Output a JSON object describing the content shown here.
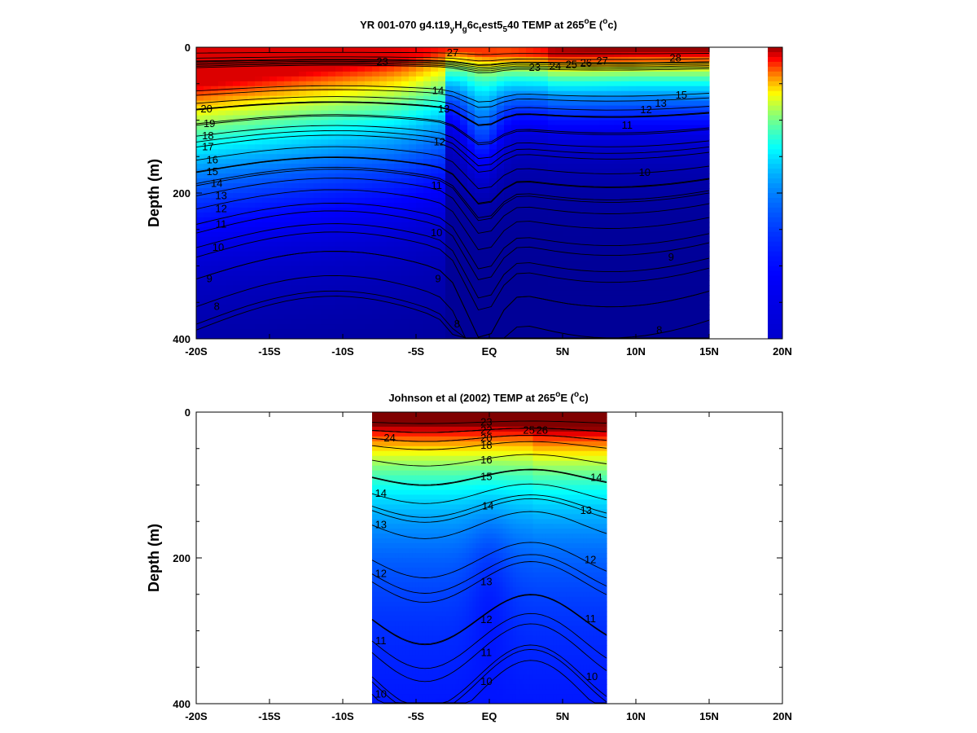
{
  "chart_data": [
    {
      "type": "contour",
      "title_parts": [
        "YR 001-070 g4.t19",
        "y",
        "H",
        "g",
        "6c",
        "t",
        "est5",
        "5",
        "40 TEMP at 265",
        "o",
        "E (",
        "o",
        "c)"
      ],
      "ylabel": "Depth (m)",
      "xlabel": "",
      "xticks": [
        "-20S",
        "-15S",
        "-10S",
        "-5S",
        "EQ",
        "5N",
        "10N",
        "15N",
        "20N"
      ],
      "xlim": [
        -20,
        20
      ],
      "yticks": [
        0,
        200,
        400
      ],
      "ylim": [
        400,
        0
      ],
      "colormap": "jet",
      "color_range": [
        7,
        29
      ],
      "data_extent": [
        -20,
        15
      ],
      "contour_labels": [
        {
          "text": "23",
          "lat": -7.3,
          "depth": 20
        },
        {
          "text": "27",
          "lat": -2.5,
          "depth": 8
        },
        {
          "text": "14",
          "lat": -3.5,
          "depth": 60
        },
        {
          "text": "13",
          "lat": -3.1,
          "depth": 85
        },
        {
          "text": "12",
          "lat": -3.4,
          "depth": 130
        },
        {
          "text": "11",
          "lat": -3.6,
          "depth": 190
        },
        {
          "text": "10",
          "lat": -3.6,
          "depth": 255
        },
        {
          "text": "9",
          "lat": -3.5,
          "depth": 318
        },
        {
          "text": "8",
          "lat": -2.2,
          "depth": 380
        },
        {
          "text": "20",
          "lat": -19.3,
          "depth": 85
        },
        {
          "text": "19",
          "lat": -19.1,
          "depth": 105
        },
        {
          "text": "18",
          "lat": -19.2,
          "depth": 122
        },
        {
          "text": "17",
          "lat": -19.2,
          "depth": 137
        },
        {
          "text": "16",
          "lat": -18.9,
          "depth": 155
        },
        {
          "text": "15",
          "lat": -18.9,
          "depth": 171
        },
        {
          "text": "14",
          "lat": -18.6,
          "depth": 187
        },
        {
          "text": "13",
          "lat": -18.3,
          "depth": 204
        },
        {
          "text": "12",
          "lat": -18.3,
          "depth": 222
        },
        {
          "text": "11",
          "lat": -18.3,
          "depth": 243
        },
        {
          "text": "10",
          "lat": -18.5,
          "depth": 275
        },
        {
          "text": "9",
          "lat": -19.1,
          "depth": 318
        },
        {
          "text": "8",
          "lat": -18.6,
          "depth": 356
        },
        {
          "text": "23",
          "lat": 3.1,
          "depth": 28
        },
        {
          "text": "24",
          "lat": 4.5,
          "depth": 26
        },
        {
          "text": "25",
          "lat": 5.6,
          "depth": 24
        },
        {
          "text": "26",
          "lat": 6.6,
          "depth": 22
        },
        {
          "text": "27",
          "lat": 7.7,
          "depth": 19
        },
        {
          "text": "28",
          "lat": 12.7,
          "depth": 15
        },
        {
          "text": "15",
          "lat": 13.1,
          "depth": 66
        },
        {
          "text": "13",
          "lat": 11.7,
          "depth": 77
        },
        {
          "text": "12",
          "lat": 10.7,
          "depth": 86
        },
        {
          "text": "11",
          "lat": 9.4,
          "depth": 107
        },
        {
          "text": "10",
          "lat": 10.6,
          "depth": 172
        },
        {
          "text": "9",
          "lat": 12.4,
          "depth": 288
        },
        {
          "text": "8",
          "lat": 11.6,
          "depth": 388
        }
      ]
    },
    {
      "type": "contour",
      "title_parts": [
        "Johnson et al (2002) TEMP at 265",
        "o",
        "E (",
        "o",
        "c)"
      ],
      "ylabel": "Depth (m)",
      "xlabel": "",
      "xticks": [
        "-20S",
        "-15S",
        "-10S",
        "-5S",
        "EQ",
        "5N",
        "10N",
        "15N",
        "20N"
      ],
      "xlim": [
        -20,
        20
      ],
      "yticks": [
        0,
        200,
        400
      ],
      "ylim": [
        400,
        0
      ],
      "colormap": "jet",
      "color_range": [
        7,
        29
      ],
      "data_extent": [
        -8,
        8
      ],
      "contour_labels": [
        {
          "text": "24",
          "lat": -6.8,
          "depth": 36
        },
        {
          "text": "23",
          "lat": -0.2,
          "depth": 14
        },
        {
          "text": "22",
          "lat": -0.2,
          "depth": 25
        },
        {
          "text": "20",
          "lat": -0.2,
          "depth": 36
        },
        {
          "text": "18",
          "lat": -0.2,
          "depth": 46
        },
        {
          "text": "16",
          "lat": -0.2,
          "depth": 66
        },
        {
          "text": "15",
          "lat": -0.2,
          "depth": 89
        },
        {
          "text": "14",
          "lat": -7.4,
          "depth": 112
        },
        {
          "text": "14",
          "lat": -0.1,
          "depth": 129
        },
        {
          "text": "13",
          "lat": -7.4,
          "depth": 155
        },
        {
          "text": "13",
          "lat": -0.2,
          "depth": 233
        },
        {
          "text": "13",
          "lat": 6.6,
          "depth": 135
        },
        {
          "text": "12",
          "lat": -7.4,
          "depth": 222
        },
        {
          "text": "12",
          "lat": -0.2,
          "depth": 285
        },
        {
          "text": "12",
          "lat": 6.9,
          "depth": 203
        },
        {
          "text": "11",
          "lat": -7.4,
          "depth": 314
        },
        {
          "text": "11",
          "lat": -0.2,
          "depth": 330
        },
        {
          "text": "11",
          "lat": 6.9,
          "depth": 284
        },
        {
          "text": "10",
          "lat": -7.4,
          "depth": 387
        },
        {
          "text": "10",
          "lat": -0.2,
          "depth": 370
        },
        {
          "text": "10",
          "lat": 7.0,
          "depth": 363
        },
        {
          "text": "14",
          "lat": 7.3,
          "depth": 90
        },
        {
          "text": "25",
          "lat": 2.7,
          "depth": 25
        },
        {
          "text": "26",
          "lat": 3.6,
          "depth": 25
        }
      ]
    }
  ]
}
